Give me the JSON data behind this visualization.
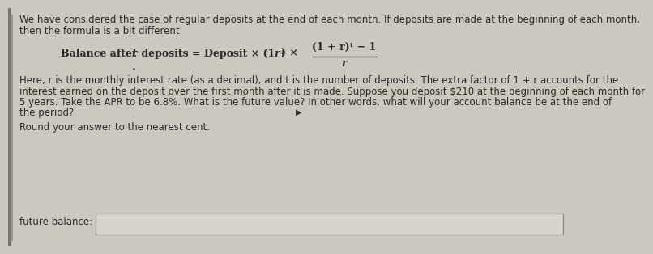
{
  "bg_color": "#ccc8c0",
  "text_color": "#2a2a2a",
  "line1": "We have considered the case of regular deposits at the end of each month. If deposits are made at the beginning of each month,",
  "line2": "then the formula is a bit different.",
  "para1": "Here, r is the monthly interest rate (as a decimal), and t is the number of deposits. The extra factor of 1 + r accounts for the",
  "para2": "interest earned on the deposit over the first month after it is made. Suppose you deposit $210 at the beginning of each month for",
  "para3": "5 years. Take the APR to be 6.8%. What is the future value? In other words, what will your account balance be at the end of",
  "para4": "the period?",
  "round_note": "Round your answer to the nearest cent.",
  "input_label": "future balance:",
  "font_size_body": 8.5,
  "left_bar_color": "#888888",
  "box_edge_color": "#888888",
  "box_face_color": "#d8d4cc"
}
